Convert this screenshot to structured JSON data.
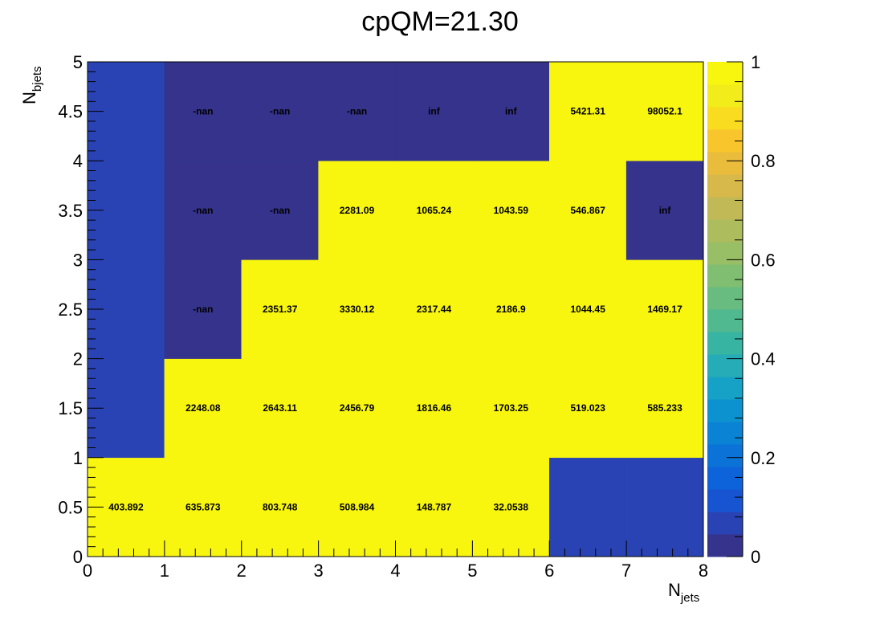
{
  "chart_data": {
    "type": "heatmap",
    "title": "cpQM=21.30",
    "xlabel": "N",
    "xlabel_sub": "jets",
    "ylabel": "N",
    "ylabel_sub": "bjets",
    "x_edges": [
      0,
      1,
      2,
      3,
      4,
      5,
      6,
      7,
      8
    ],
    "y_edges": [
      0,
      1,
      2,
      3,
      4,
      5
    ],
    "x_ticks": [
      "0",
      "1",
      "2",
      "3",
      "4",
      "5",
      "6",
      "7",
      "8"
    ],
    "y_ticks": [
      "0",
      "0.5",
      "1",
      "1.5",
      "2",
      "2.5",
      "3",
      "3.5",
      "4",
      "4.5",
      "5"
    ],
    "zlim": [
      0,
      1
    ],
    "z_ticks": [
      "0",
      "0.2",
      "0.4",
      "0.6",
      "0.8",
      "1"
    ],
    "palette": [
      "#35338c",
      "#2a43b4",
      "#1654d2",
      "#0d63da",
      "#0b73d8",
      "#0a83d4",
      "#0c93cf",
      "#16a2c6",
      "#25acb6",
      "#38b5a2",
      "#50b98f",
      "#68bc7f",
      "#80be71",
      "#98be66",
      "#adbc5d",
      "#c1b955",
      "#d7b84a",
      "#eabc3c",
      "#f9c52c",
      "#f9dc1f",
      "#f2ec1a",
      "#f8f60e"
    ],
    "cells": [
      {
        "x": 0,
        "y": 0,
        "z": 1,
        "label": "403.892"
      },
      {
        "x": 1,
        "y": 0,
        "z": 1,
        "label": "635.873"
      },
      {
        "x": 2,
        "y": 0,
        "z": 1,
        "label": "803.748"
      },
      {
        "x": 3,
        "y": 0,
        "z": 1,
        "label": "508.984"
      },
      {
        "x": 4,
        "y": 0,
        "z": 1,
        "label": "148.787"
      },
      {
        "x": 5,
        "y": 0,
        "z": 1,
        "label": "32.0538"
      },
      {
        "x": 6,
        "y": 0,
        "z": 0.05,
        "label": ""
      },
      {
        "x": 7,
        "y": 0,
        "z": 0.05,
        "label": ""
      },
      {
        "x": 0,
        "y": 1,
        "z": 0.05,
        "label": ""
      },
      {
        "x": 1,
        "y": 1,
        "z": 1,
        "label": "2248.08"
      },
      {
        "x": 2,
        "y": 1,
        "z": 1,
        "label": "2643.11"
      },
      {
        "x": 3,
        "y": 1,
        "z": 1,
        "label": "2456.79"
      },
      {
        "x": 4,
        "y": 1,
        "z": 1,
        "label": "1816.46"
      },
      {
        "x": 5,
        "y": 1,
        "z": 1,
        "label": "1703.25"
      },
      {
        "x": 6,
        "y": 1,
        "z": 1,
        "label": "519.023"
      },
      {
        "x": 7,
        "y": 1,
        "z": 1,
        "label": "585.233"
      },
      {
        "x": 0,
        "y": 2,
        "z": 0.05,
        "label": ""
      },
      {
        "x": 1,
        "y": 2,
        "z": 0,
        "label": "-nan"
      },
      {
        "x": 2,
        "y": 2,
        "z": 1,
        "label": "2351.37"
      },
      {
        "x": 3,
        "y": 2,
        "z": 1,
        "label": "3330.12"
      },
      {
        "x": 4,
        "y": 2,
        "z": 1,
        "label": "2317.44"
      },
      {
        "x": 5,
        "y": 2,
        "z": 1,
        "label": "2186.9"
      },
      {
        "x": 6,
        "y": 2,
        "z": 1,
        "label": "1044.45"
      },
      {
        "x": 7,
        "y": 2,
        "z": 1,
        "label": "1469.17"
      },
      {
        "x": 0,
        "y": 3,
        "z": 0.05,
        "label": ""
      },
      {
        "x": 1,
        "y": 3,
        "z": 0,
        "label": "-nan"
      },
      {
        "x": 2,
        "y": 3,
        "z": 0,
        "label": "-nan"
      },
      {
        "x": 3,
        "y": 3,
        "z": 1,
        "label": "2281.09"
      },
      {
        "x": 4,
        "y": 3,
        "z": 1,
        "label": "1065.24"
      },
      {
        "x": 5,
        "y": 3,
        "z": 1,
        "label": "1043.59"
      },
      {
        "x": 6,
        "y": 3,
        "z": 1,
        "label": "546.867"
      },
      {
        "x": 7,
        "y": 3,
        "z": 0,
        "label": "inf"
      },
      {
        "x": 0,
        "y": 4,
        "z": 0.05,
        "label": ""
      },
      {
        "x": 1,
        "y": 4,
        "z": 0,
        "label": "-nan"
      },
      {
        "x": 2,
        "y": 4,
        "z": 0,
        "label": "-nan"
      },
      {
        "x": 3,
        "y": 4,
        "z": 0,
        "label": "-nan"
      },
      {
        "x": 4,
        "y": 4,
        "z": 0,
        "label": "inf"
      },
      {
        "x": 5,
        "y": 4,
        "z": 0,
        "label": "inf"
      },
      {
        "x": 6,
        "y": 4,
        "z": 1,
        "label": "5421.31"
      },
      {
        "x": 7,
        "y": 4,
        "z": 1,
        "label": "98052.1"
      }
    ]
  }
}
